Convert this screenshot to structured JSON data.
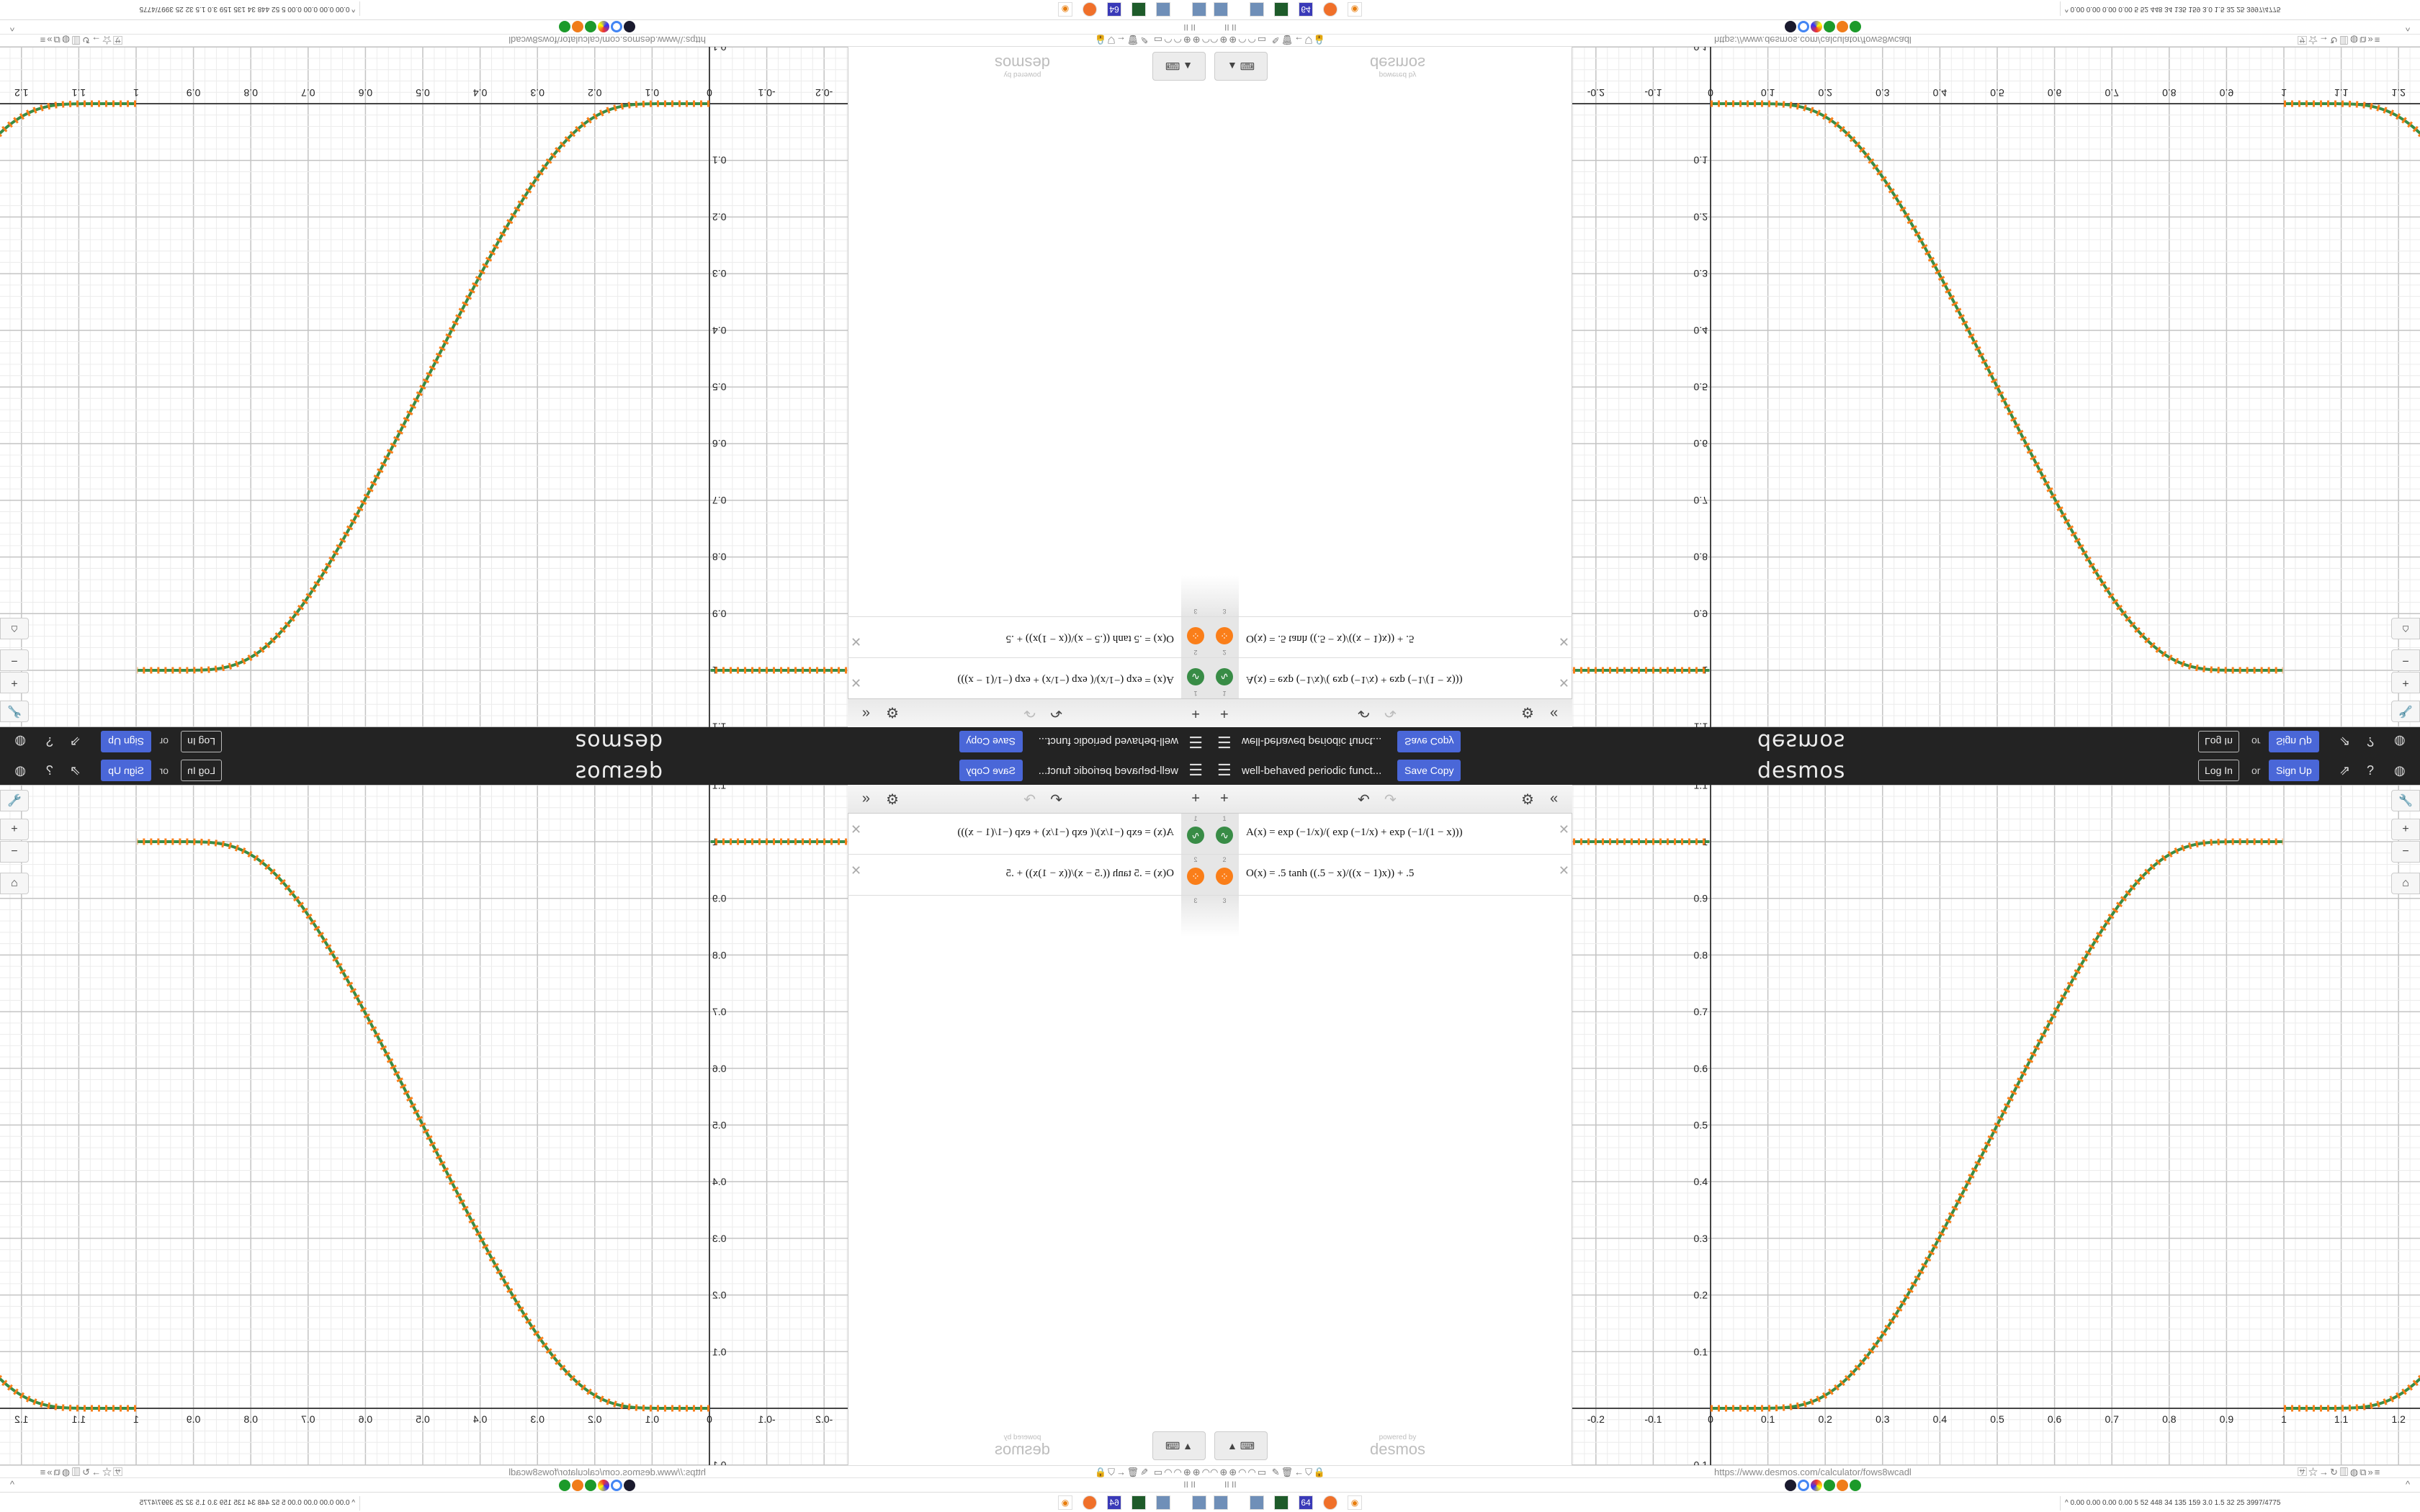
{
  "header": {
    "menu_icon": "hamburger-icon",
    "graph_title": "well-behaved periodic funct...",
    "save_copy": "Save Copy",
    "logo": "desmos",
    "log_in": "Log In",
    "or": "or",
    "sign_up": "Sign Up",
    "icons": [
      "share-icon",
      "help-icon",
      "language-icon"
    ]
  },
  "toolbar": {
    "add": "+",
    "undo": "↶",
    "redo": "↷",
    "settings": "⚙",
    "collapse": "«"
  },
  "expressions": [
    {
      "num": "1",
      "color": "#388c46",
      "icon": "wave",
      "text": "A(x) = exp (−1/x)/( exp (−1/x) + exp (−1/(1 − x)))"
    },
    {
      "num": "2",
      "color": "#fa7e19",
      "icon": "points",
      "text": "O(x) = .5 tanh ((.5 − x)/((x − 1)x)) + .5"
    },
    {
      "num": "3",
      "text": ""
    }
  ],
  "graph": {
    "x_ticks": [
      "-0.2",
      "-0.1",
      "0",
      "0.1",
      "0.2",
      "0.3",
      "0.4",
      "0.5",
      "0.6",
      "0.7",
      "0.8",
      "0.9",
      "1",
      "1.1",
      "1.2"
    ],
    "y_ticks": [
      "-0.1",
      "0.1",
      "0.2",
      "0.3",
      "0.4",
      "0.5",
      "0.6",
      "0.7",
      "0.8",
      "0.9",
      "1",
      "1.1"
    ],
    "xlim": [
      -0.24,
      1.24
    ],
    "ylim": [
      -0.16,
      1.12
    ],
    "colors": {
      "A": "#388c46",
      "O": "#fa7e19"
    },
    "controls": [
      "wrench-icon",
      "zoom-in-icon",
      "zoom-out-icon",
      "home-icon"
    ]
  },
  "keypad": {
    "label": "▲ ⌨"
  },
  "powered": {
    "small": "powered by",
    "brand": "desmos"
  },
  "browser": {
    "url": "https://www.desmos.com/calculator/fows8wcadl",
    "pause": "II II"
  },
  "taskbar": {
    "stats": "^ 0.00 0.00 0.00 0.00  5  52  448  34  135  159  3.0  1.5  32  25  3997/4775"
  }
}
